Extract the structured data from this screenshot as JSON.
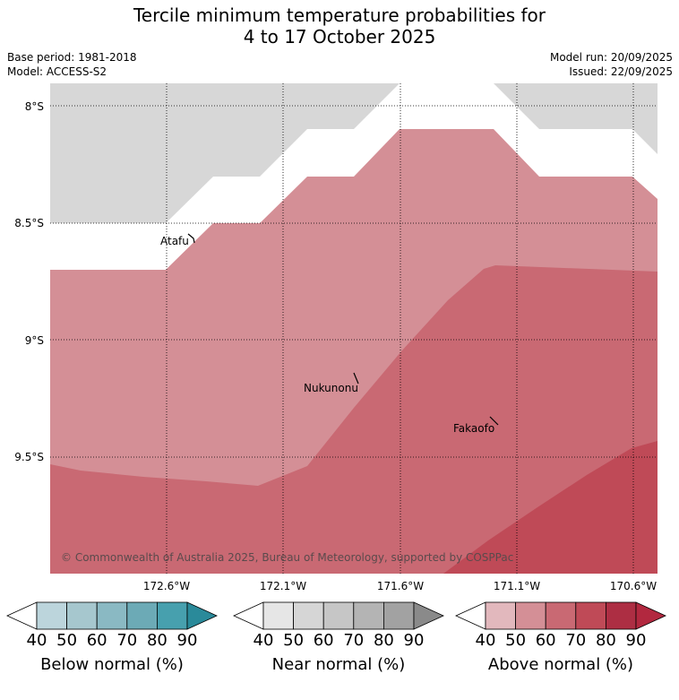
{
  "title": {
    "line1": "Tercile minimum temperature probabilities for",
    "line2": "4 to 17 October 2025"
  },
  "meta": {
    "base_period": "Base period: 1981-2018",
    "model": "Model: ACCESS-S2",
    "model_run": "Model run: 20/09/2025",
    "issued": "Issued: 22/09/2025"
  },
  "map": {
    "lat_labels": [
      "8°S",
      "8.5°S",
      "9°S",
      "9.5°S"
    ],
    "lon_labels": [
      "172.6°W",
      "172.1°W",
      "171.6°W",
      "171.1°W",
      "170.6°W"
    ],
    "places": [
      "Atafu",
      "Nukunonu",
      "Fakaofo"
    ],
    "copyright": "© Commonwealth of Australia 2025, Bureau of Meteorology, supported by COSPPac",
    "colors": {
      "no_data": "#d7d7d7",
      "above_50": "#d48f96",
      "above_60": "#c96973",
      "above_70": "#bf4a57"
    }
  },
  "colorbars": [
    {
      "title": "Below normal (%)",
      "ticks": [
        "40",
        "50",
        "60",
        "70",
        "80",
        "90"
      ],
      "colors": [
        "#ffffff",
        "#bcd5dc",
        "#a6c7ce",
        "#8ab9c3",
        "#6caab6",
        "#47a0ae",
        "#2a8a9a"
      ]
    },
    {
      "title": "Near normal (%)",
      "ticks": [
        "40",
        "50",
        "60",
        "70",
        "80",
        "90"
      ],
      "colors": [
        "#ffffff",
        "#e6e6e6",
        "#d6d6d6",
        "#c6c6c6",
        "#b4b4b4",
        "#a2a2a2",
        "#8a8a8a"
      ]
    },
    {
      "title": "Above normal (%)",
      "ticks": [
        "40",
        "50",
        "60",
        "70",
        "80",
        "90"
      ],
      "colors": [
        "#ffffff",
        "#e2b8bd",
        "#d48f96",
        "#c96973",
        "#bf4a57",
        "#ad2e43",
        "#b2283f"
      ]
    }
  ]
}
